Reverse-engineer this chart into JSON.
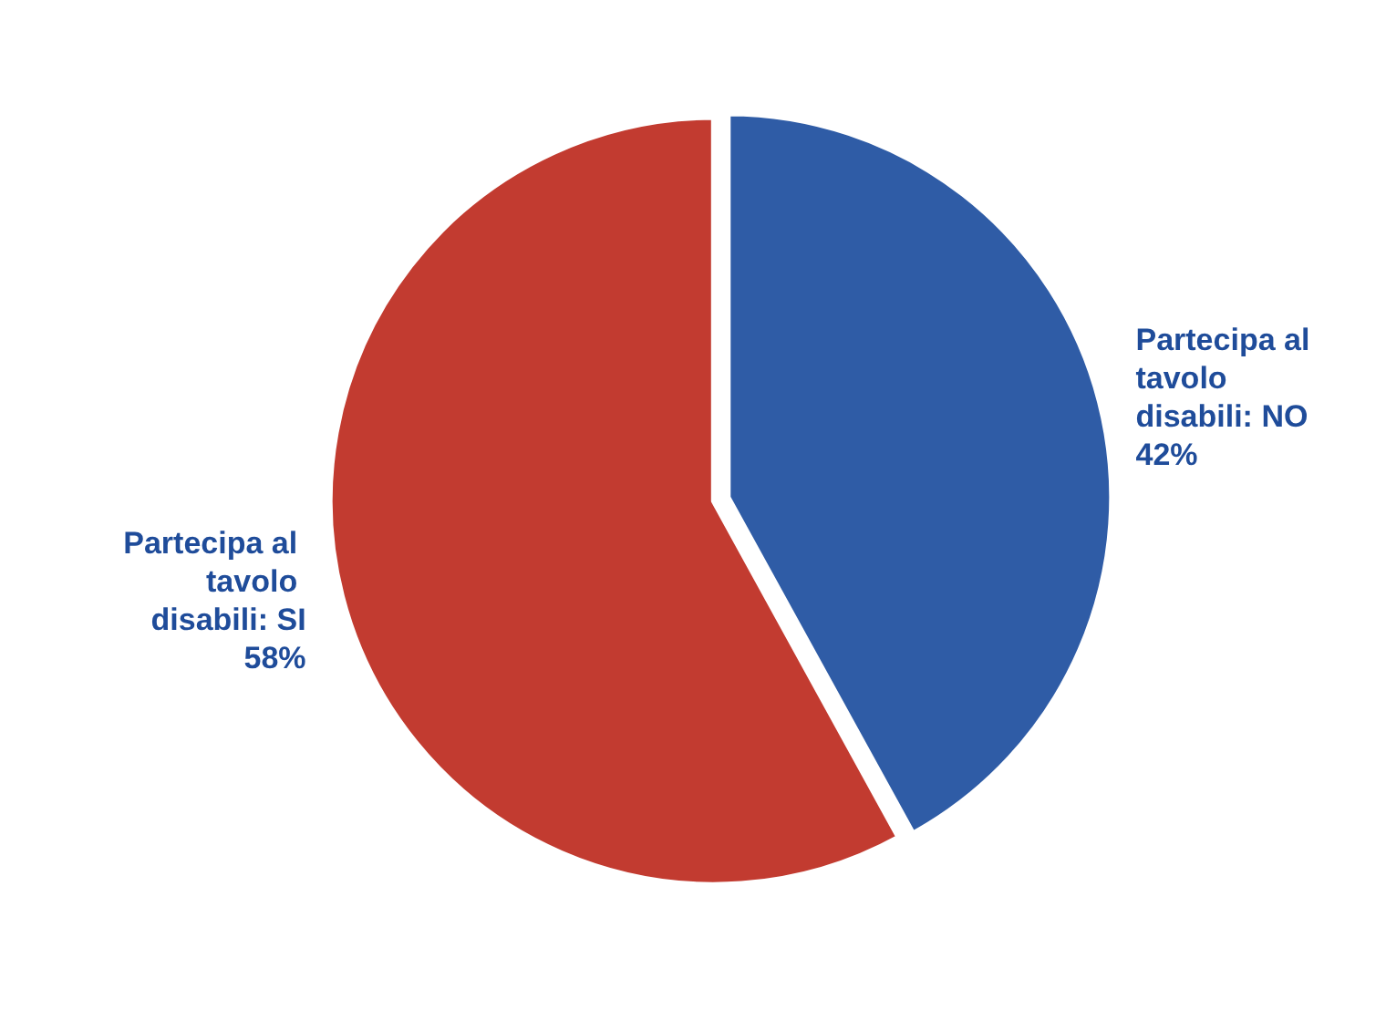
{
  "chart_data": {
    "type": "pie",
    "categories": [
      "Partecipa al tavolo disabili: NO",
      "Partecipa al tavolo disabili: SI"
    ],
    "values": [
      42,
      58
    ],
    "colors": [
      "#2f5ca6",
      "#c23b30"
    ],
    "value_labels": [
      "42%",
      "58%"
    ],
    "legend": false
  }
}
